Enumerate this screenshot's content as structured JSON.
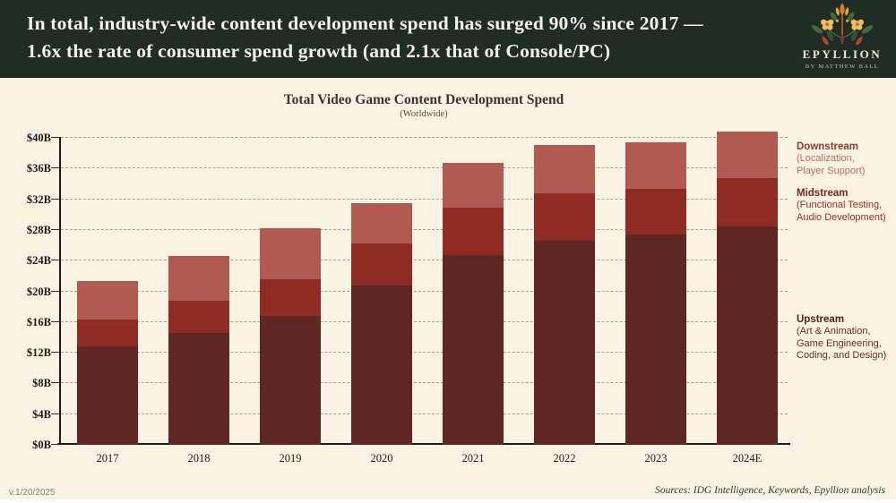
{
  "header": {
    "title_line1": "In total, industry-wide content development spend has surged 90% since 2017 —",
    "title_line2": "1.6x the rate of consumer spend growth (and 2.1x that of Console/PC)",
    "logo": {
      "brand": "EPYLLION",
      "byline": "By Matthew Ball",
      "icon": "folk-floral-bouquet-icon"
    }
  },
  "chart": {
    "title": "Total Video Game Content Development Spend",
    "subtitle": "(Worldwide)"
  },
  "chart_data": {
    "type": "bar",
    "stacked": true,
    "title": "Total Video Game Content Development Spend",
    "subtitle": "(Worldwide)",
    "categories": [
      "2017",
      "2018",
      "2019",
      "2020",
      "2021",
      "2022",
      "2023",
      "2024E"
    ],
    "series": [
      {
        "name": "Upstream",
        "color": "#5f2723",
        "values": [
          12.8,
          14.6,
          16.8,
          20.8,
          24.7,
          26.6,
          27.4,
          28.5
        ]
      },
      {
        "name": "Midstream",
        "color": "#8e2b23",
        "values": [
          3.5,
          4.2,
          4.8,
          5.4,
          6.2,
          6.2,
          6.0,
          6.2
        ]
      },
      {
        "name": "Downstream",
        "color": "#b15a4f",
        "values": [
          5.1,
          5.8,
          6.6,
          5.3,
          5.8,
          6.3,
          6.0,
          6.1
        ]
      }
    ],
    "totals": [
      21.4,
      24.6,
      28.2,
      31.5,
      36.7,
      39.1,
      39.4,
      40.8
    ],
    "xlabel": "",
    "ylabel": "",
    "ylim": [
      0,
      40
    ],
    "ytick_step": 4,
    "ytick_labels": [
      "$0B",
      "$4B",
      "$8B",
      "$12B",
      "$16B",
      "$20B",
      "$24B",
      "$28B",
      "$32B",
      "$36B",
      "$40B"
    ],
    "grid": "horizontal-dashed",
    "legend_position": "right"
  },
  "legend": {
    "entries": [
      {
        "label": "Downstream",
        "lines": [
          "(Localization,",
          "Player Support)"
        ],
        "heading_color": "#8f3c2f",
        "text_color": "#b5705f"
      },
      {
        "label": "Midstream",
        "lines": [
          "(Functional Testing,",
          "Audio Development)"
        ],
        "heading_color": "#7c251d",
        "text_color": "#9e3026"
      },
      {
        "label": "Upstream",
        "lines": [
          "(Art & Animation,",
          "Game Engineering,",
          "Coding, and Design)"
        ],
        "heading_color": "#53221e",
        "text_color": "#6b2d27"
      }
    ]
  },
  "footer": {
    "version": "v.1/20/2025",
    "sources": "Sources: IDG Intelligence, Keywords, Epyllion analysis"
  },
  "colors": {
    "header_bg": "#1f2d25",
    "header_text": "#f7f3e8",
    "page_bg": "#faf3e4",
    "axis": "#1d1b17",
    "grid": "#a9a293",
    "upstream": "#5f2723",
    "midstream": "#8e2b23",
    "downstream": "#b15a4f"
  }
}
